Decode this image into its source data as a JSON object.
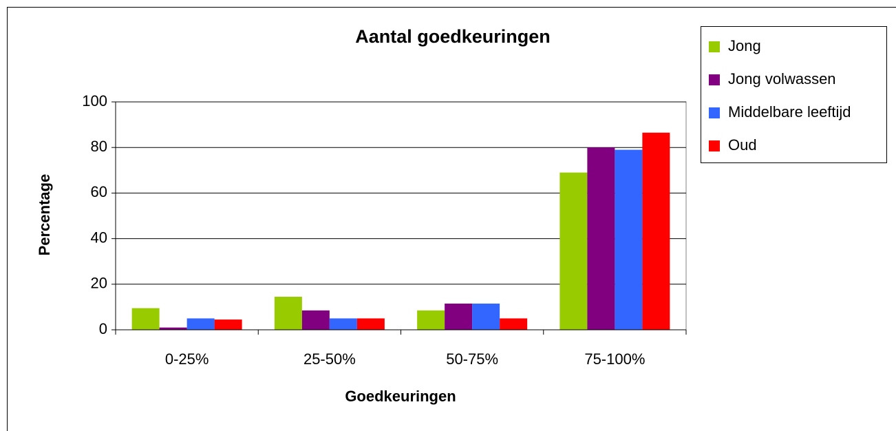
{
  "chart_data": {
    "type": "bar",
    "title": "Aantal goedkeuringen",
    "xlabel": "Goedkeuringen",
    "ylabel": "Percentage",
    "categories": [
      "0-25%",
      "25-50%",
      "50-75%",
      "75-100%"
    ],
    "series": [
      {
        "name": "Jong",
        "color": "#99cc00",
        "values": [
          9.5,
          14.5,
          8.5,
          69
        ]
      },
      {
        "name": "Jong volwassen",
        "color": "#800080",
        "values": [
          1,
          8.5,
          11.5,
          80
        ]
      },
      {
        "name": "Middelbare leeftijd",
        "color": "#3366ff",
        "values": [
          5,
          5,
          11.5,
          79
        ]
      },
      {
        "name": "Oud",
        "color": "#ff0000",
        "values": [
          4.5,
          5,
          5,
          86.5
        ]
      }
    ],
    "ylim": [
      0,
      100
    ],
    "yticks": [
      0,
      20,
      40,
      60,
      80,
      100
    ],
    "grid": true,
    "legend": "upper right"
  }
}
